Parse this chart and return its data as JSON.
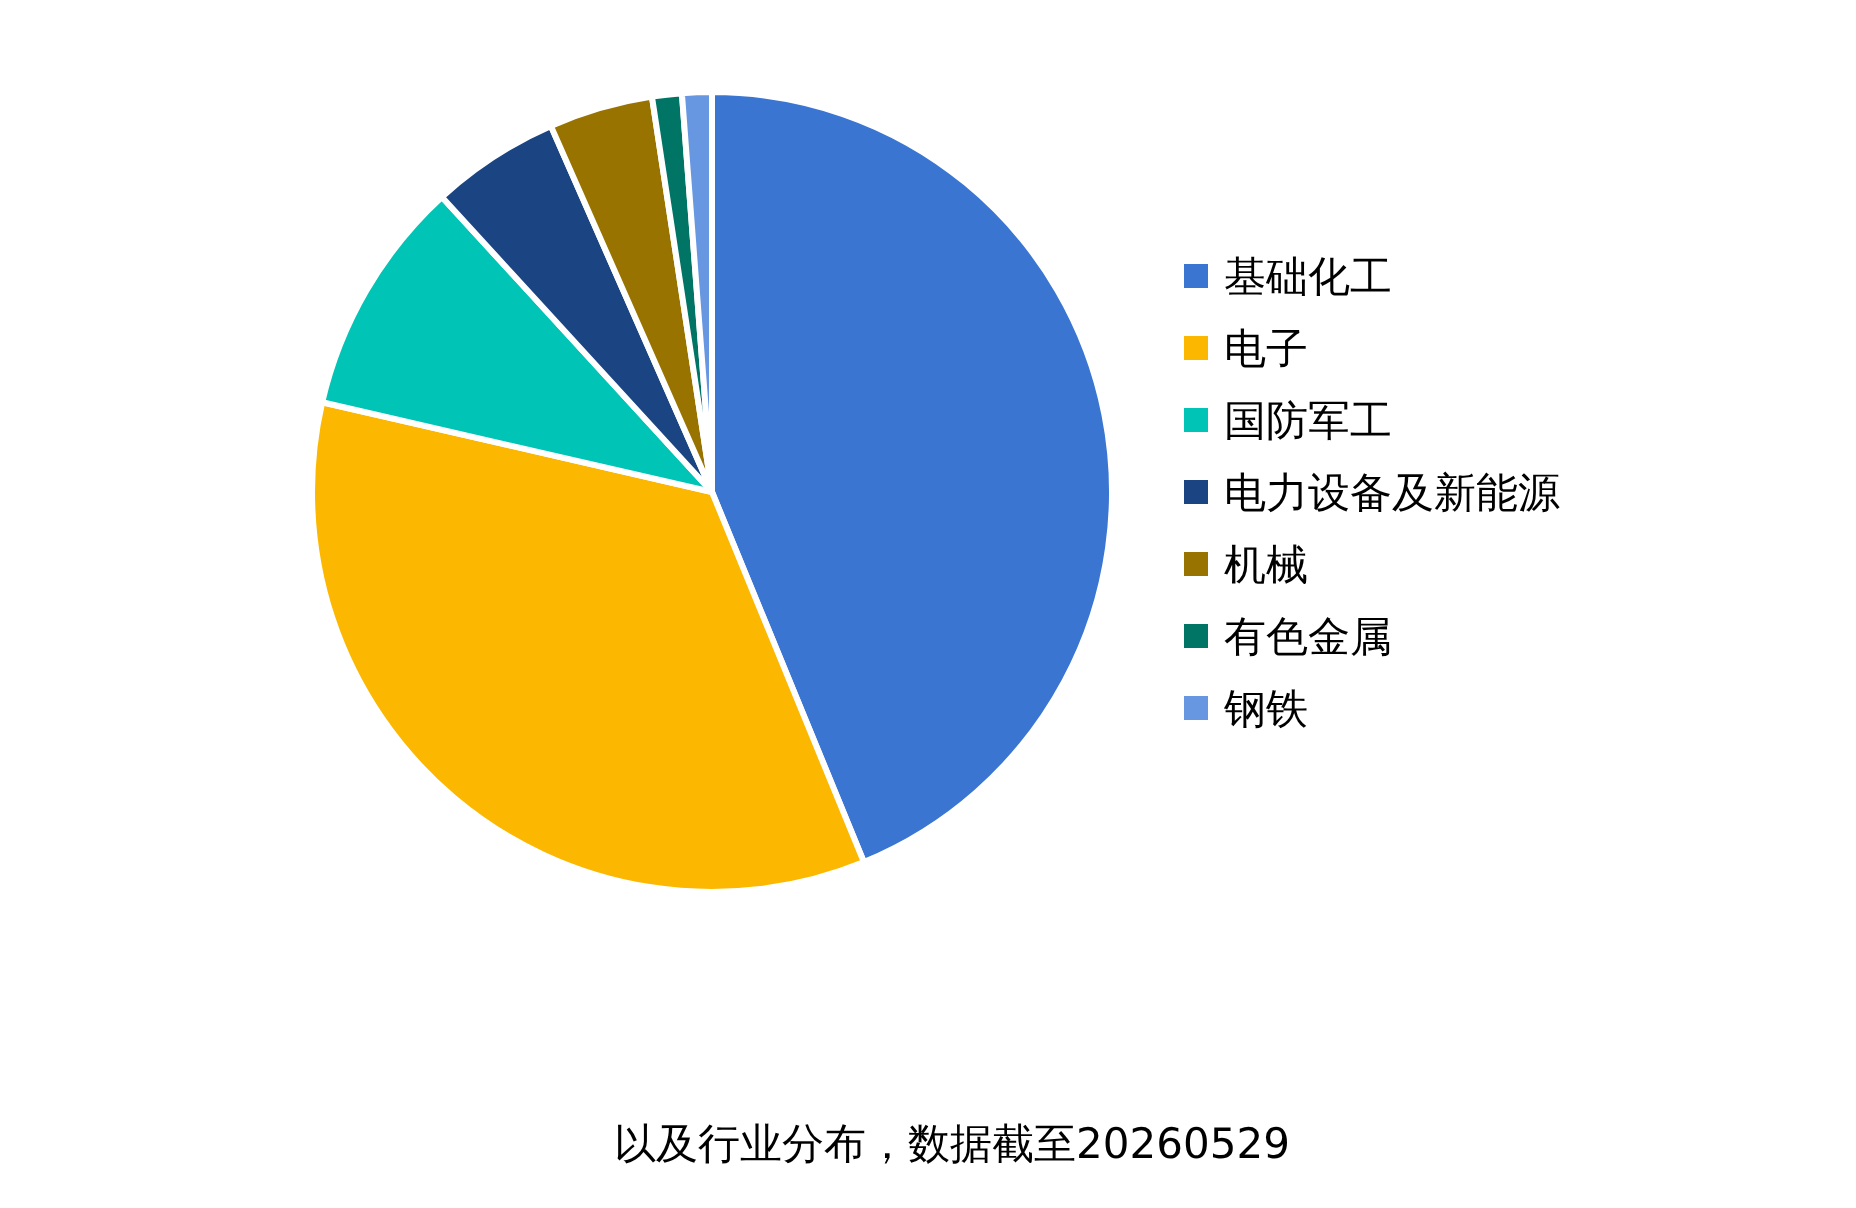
{
  "chart_data": {
    "type": "pie",
    "categories": [
      "基础化工",
      "电子",
      "国防军工",
      "电力设备及新能源",
      "机械",
      "有色金属",
      "钢铁"
    ],
    "values": [
      43.8,
      34.8,
      9.6,
      5.2,
      4.2,
      1.2,
      1.2
    ],
    "colors": [
      "#3a75d2",
      "#fcb800",
      "#00c5b6",
      "#1b4483",
      "#997300",
      "#007565",
      "#6897e2"
    ],
    "legend": "right",
    "annotations": [
      "以及行业分布，数据截至20260529"
    ]
  }
}
